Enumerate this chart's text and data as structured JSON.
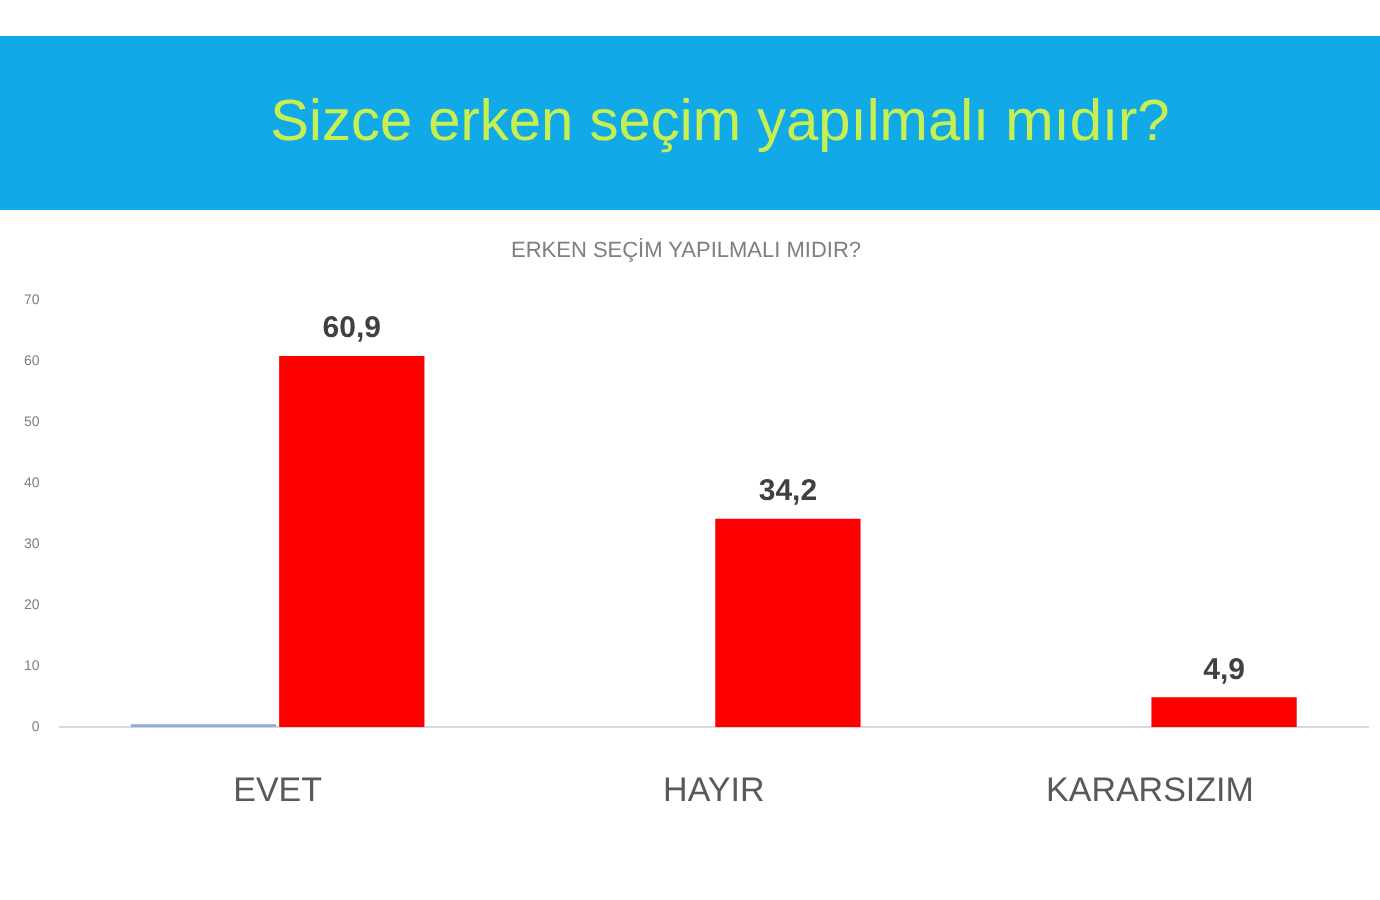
{
  "chart_data": {
    "type": "bar",
    "title": "Sizce erken seçim yapılmalı mıdır?",
    "subtitle": "ERKEN SEÇİM YAPILMALI MIDIR?",
    "categories": [
      "EVET",
      "HAYIR",
      "KARARSIZIM"
    ],
    "series": [
      {
        "color": "#8eaadb",
        "values": [
          0.5,
          null,
          null
        ]
      },
      {
        "color": "#ff0000",
        "values": [
          60.9,
          34.2,
          4.9
        ],
        "value_labels": [
          "60,9",
          "34,2",
          "4,9"
        ]
      }
    ],
    "ylim": [
      0,
      70
    ],
    "yticks": [
      0,
      10,
      20,
      30,
      40,
      50,
      60,
      70
    ]
  }
}
